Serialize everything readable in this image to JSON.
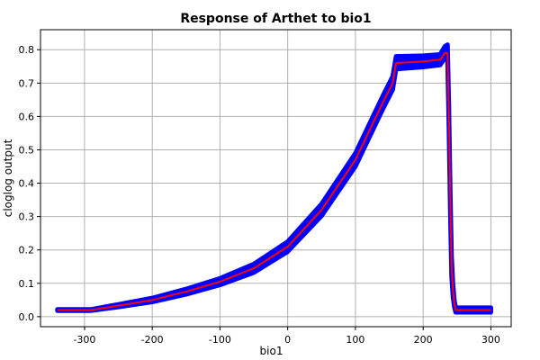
{
  "chart_data": {
    "type": "line",
    "title": "Response of Arthet to bio1",
    "xlabel": "bio1",
    "ylabel": "cloglog output",
    "xlim": [
      -365,
      330
    ],
    "ylim": [
      -0.03,
      0.86
    ],
    "xticks": [
      -300,
      -200,
      -100,
      0,
      100,
      200,
      300
    ],
    "yticks": [
      0.0,
      0.1,
      0.2,
      0.3,
      0.4,
      0.5,
      0.6,
      0.7,
      0.8
    ],
    "grid": true,
    "colors": {
      "mean": "#ff0000",
      "band": "#0000ff"
    },
    "series": [
      {
        "role": "mean",
        "x": [
          -340,
          -290,
          -250,
          -200,
          -150,
          -100,
          -50,
          0,
          50,
          100,
          140,
          155,
          160,
          200,
          225,
          232,
          236,
          238,
          240,
          242,
          244,
          246,
          248,
          252,
          300
        ],
        "y": [
          0.02,
          0.02,
          0.033,
          0.05,
          0.075,
          0.105,
          0.145,
          0.21,
          0.32,
          0.47,
          0.64,
          0.7,
          0.76,
          0.765,
          0.77,
          0.79,
          0.79,
          0.6,
          0.35,
          0.15,
          0.08,
          0.04,
          0.02,
          0.02,
          0.02
        ]
      },
      {
        "role": "band-upper",
        "x": [
          -340,
          -290,
          -250,
          -200,
          -150,
          -100,
          -50,
          0,
          50,
          100,
          140,
          155,
          160,
          200,
          225,
          232,
          236,
          238,
          240,
          242,
          244,
          246,
          248,
          252,
          300
        ],
        "y": [
          0.022,
          0.022,
          0.037,
          0.056,
          0.083,
          0.115,
          0.158,
          0.225,
          0.338,
          0.49,
          0.66,
          0.72,
          0.78,
          0.782,
          0.786,
          0.81,
          0.815,
          0.63,
          0.38,
          0.18,
          0.1,
          0.05,
          0.027,
          0.027,
          0.027
        ]
      },
      {
        "role": "band-lower",
        "x": [
          -340,
          -290,
          -250,
          -200,
          -150,
          -100,
          -50,
          0,
          50,
          100,
          140,
          155,
          160,
          200,
          225,
          232,
          236,
          238,
          240,
          242,
          244,
          246,
          248,
          252,
          300
        ],
        "y": [
          0.018,
          0.018,
          0.029,
          0.044,
          0.067,
          0.095,
          0.132,
          0.195,
          0.302,
          0.45,
          0.62,
          0.68,
          0.742,
          0.748,
          0.754,
          0.775,
          0.77,
          0.57,
          0.32,
          0.12,
          0.06,
          0.03,
          0.013,
          0.013,
          0.013
        ]
      }
    ]
  }
}
